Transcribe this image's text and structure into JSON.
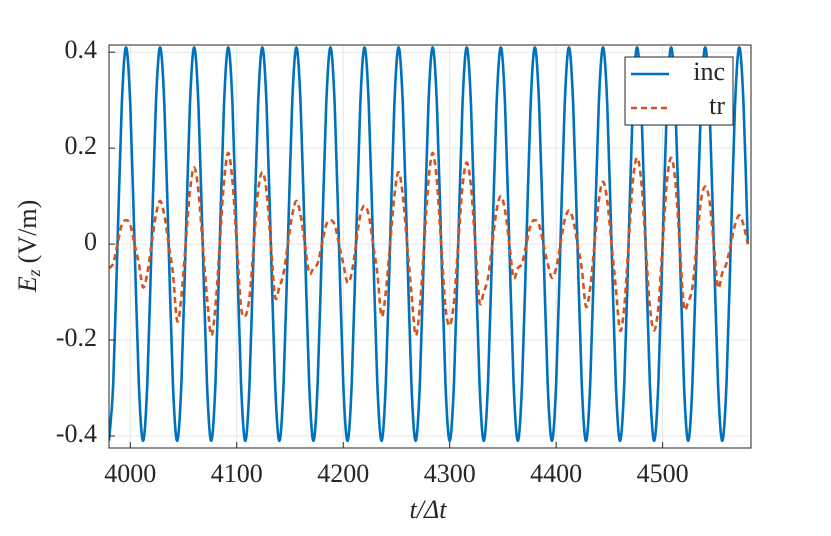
{
  "chart_data": {
    "type": "line",
    "xlabel": "t/Δt",
    "ylabel": {
      "symbol": "E",
      "subscript": "z",
      "unit": "(V/m)"
    },
    "x": [
      3980,
      3984,
      3988,
      3992,
      3996,
      4000,
      4004,
      4008,
      4012,
      4016,
      4020,
      4024,
      4028,
      4032,
      4036,
      4040,
      4044,
      4048,
      4052,
      4056,
      4060,
      4064,
      4068,
      4072,
      4076,
      4080,
      4084,
      4088,
      4092,
      4096,
      4100,
      4104,
      4108,
      4112,
      4116,
      4120,
      4124,
      4128,
      4132,
      4136,
      4140,
      4144,
      4148,
      4152,
      4156,
      4160,
      4164,
      4168,
      4172,
      4176,
      4180,
      4184,
      4188,
      4192,
      4196,
      4200,
      4204,
      4208,
      4212,
      4216,
      4220,
      4224,
      4228,
      4232,
      4236,
      4240,
      4244,
      4248,
      4252,
      4256,
      4260,
      4264,
      4268,
      4272,
      4276,
      4280,
      4284,
      4288,
      4292,
      4296,
      4300,
      4304,
      4308,
      4312,
      4316,
      4320,
      4324,
      4328,
      4332,
      4336,
      4340,
      4344,
      4348,
      4352,
      4356,
      4360,
      4364,
      4368,
      4372,
      4376,
      4380,
      4384,
      4388,
      4392,
      4396,
      4400,
      4404,
      4408,
      4412,
      4416,
      4420,
      4424,
      4428,
      4432,
      4436,
      4440,
      4444,
      4448,
      4452,
      4456,
      4460,
      4464,
      4468,
      4472,
      4476,
      4480,
      4484,
      4488,
      4492,
      4496,
      4500,
      4504,
      4508,
      4512,
      4516,
      4520,
      4524,
      4528,
      4532,
      4536,
      4540,
      4544,
      4548,
      4552,
      4556,
      4560,
      4564,
      4568,
      4572,
      4576,
      4580
    ],
    "series": [
      {
        "name": "inc",
        "color": "#0072bd",
        "dash": false,
        "values": [
          -0.41,
          -0.29,
          0,
          0.29,
          0.41,
          0.29,
          0,
          -0.29,
          -0.41,
          -0.29,
          0,
          0.29,
          0.41,
          0.29,
          0,
          -0.29,
          -0.41,
          -0.29,
          0,
          0.29,
          0.41,
          0.29,
          0,
          -0.29,
          -0.41,
          -0.29,
          0,
          0.29,
          0.41,
          0.29,
          0,
          -0.29,
          -0.41,
          -0.29,
          0,
          0.29,
          0.41,
          0.29,
          0,
          -0.29,
          -0.41,
          -0.29,
          0,
          0.29,
          0.41,
          0.29,
          0,
          -0.29,
          -0.41,
          -0.29,
          0,
          0.29,
          0.41,
          0.29,
          0,
          -0.29,
          -0.41,
          -0.29,
          0,
          0.29,
          0.41,
          0.29,
          0,
          -0.29,
          -0.41,
          -0.29,
          0,
          0.29,
          0.41,
          0.29,
          0,
          -0.29,
          -0.41,
          -0.29,
          0,
          0.29,
          0.41,
          0.29,
          0,
          -0.29,
          -0.41,
          -0.29,
          0,
          0.29,
          0.41,
          0.29,
          0,
          -0.29,
          -0.41,
          -0.29,
          0,
          0.29,
          0.41,
          0.29,
          0,
          -0.29,
          -0.41,
          -0.29,
          0,
          0.29,
          0.41,
          0.29,
          0,
          -0.29,
          -0.41,
          -0.29,
          0,
          0.29,
          0.41,
          0.29,
          0,
          -0.29,
          -0.41,
          -0.29,
          0,
          0.29,
          0.41,
          0.29,
          0,
          -0.29,
          -0.41,
          -0.29,
          0,
          0.29,
          0.41,
          0.29,
          0,
          -0.29,
          -0.41,
          -0.29,
          0,
          0.29,
          0.41,
          0.29,
          0,
          -0.29,
          -0.41,
          -0.29,
          0,
          0.29,
          0.41,
          0.29,
          0,
          -0.29,
          -0.41,
          -0.29,
          0,
          0.29,
          0.41,
          0.29,
          0
        ]
      },
      {
        "name": "tr",
        "color": "#d95319",
        "dash": true,
        "values": [
          -0.05,
          -0.04,
          0,
          0.04,
          0.05,
          0.04,
          0,
          -0.04,
          -0.09,
          -0.06,
          0,
          0.06,
          0.09,
          0.06,
          0,
          -0.06,
          -0.16,
          -0.11,
          0,
          0.11,
          0.16,
          0.11,
          0,
          -0.11,
          -0.19,
          -0.13,
          0,
          0.13,
          0.19,
          0.13,
          0,
          -0.13,
          -0.15,
          -0.11,
          0,
          0.11,
          0.15,
          0.11,
          0,
          -0.11,
          -0.09,
          -0.06,
          0,
          0.06,
          0.09,
          0.06,
          0,
          -0.06,
          -0.05,
          -0.04,
          0,
          0.04,
          0.05,
          0.04,
          0,
          -0.04,
          -0.08,
          -0.06,
          0,
          0.06,
          0.08,
          0.06,
          0,
          -0.06,
          -0.15,
          -0.1,
          0,
          0.1,
          0.15,
          0.1,
          0,
          -0.1,
          -0.19,
          -0.13,
          0,
          0.13,
          0.19,
          0.13,
          0,
          -0.13,
          -0.17,
          -0.12,
          0,
          0.12,
          0.17,
          0.12,
          0,
          -0.12,
          -0.1,
          -0.07,
          0,
          0.07,
          0.1,
          0.07,
          0,
          -0.07,
          -0.05,
          -0.04,
          0,
          0.04,
          0.05,
          0.04,
          0,
          -0.04,
          -0.07,
          -0.05,
          0,
          0.05,
          0.07,
          0.05,
          0,
          -0.05,
          -0.13,
          -0.09,
          0,
          0.09,
          0.13,
          0.09,
          0,
          -0.09,
          -0.18,
          -0.13,
          0,
          0.13,
          0.18,
          0.13,
          0,
          -0.13,
          -0.18,
          -0.13,
          0,
          0.13,
          0.18,
          0.13,
          0,
          -0.13,
          -0.12,
          -0.09,
          0,
          0.09,
          0.12,
          0.09,
          0,
          -0.09,
          -0.06,
          -0.04,
          0,
          0.04,
          0.06,
          0.04,
          0
        ]
      }
    ],
    "xlim": [
      3980,
      4583
    ],
    "xticks": [
      4000,
      4100,
      4200,
      4300,
      4400,
      4500
    ],
    "ylim": [
      -0.425,
      0.415
    ],
    "yticks": [
      -0.4,
      -0.2,
      0,
      0.2,
      0.4
    ],
    "grid": true,
    "legend": "northeast"
  }
}
